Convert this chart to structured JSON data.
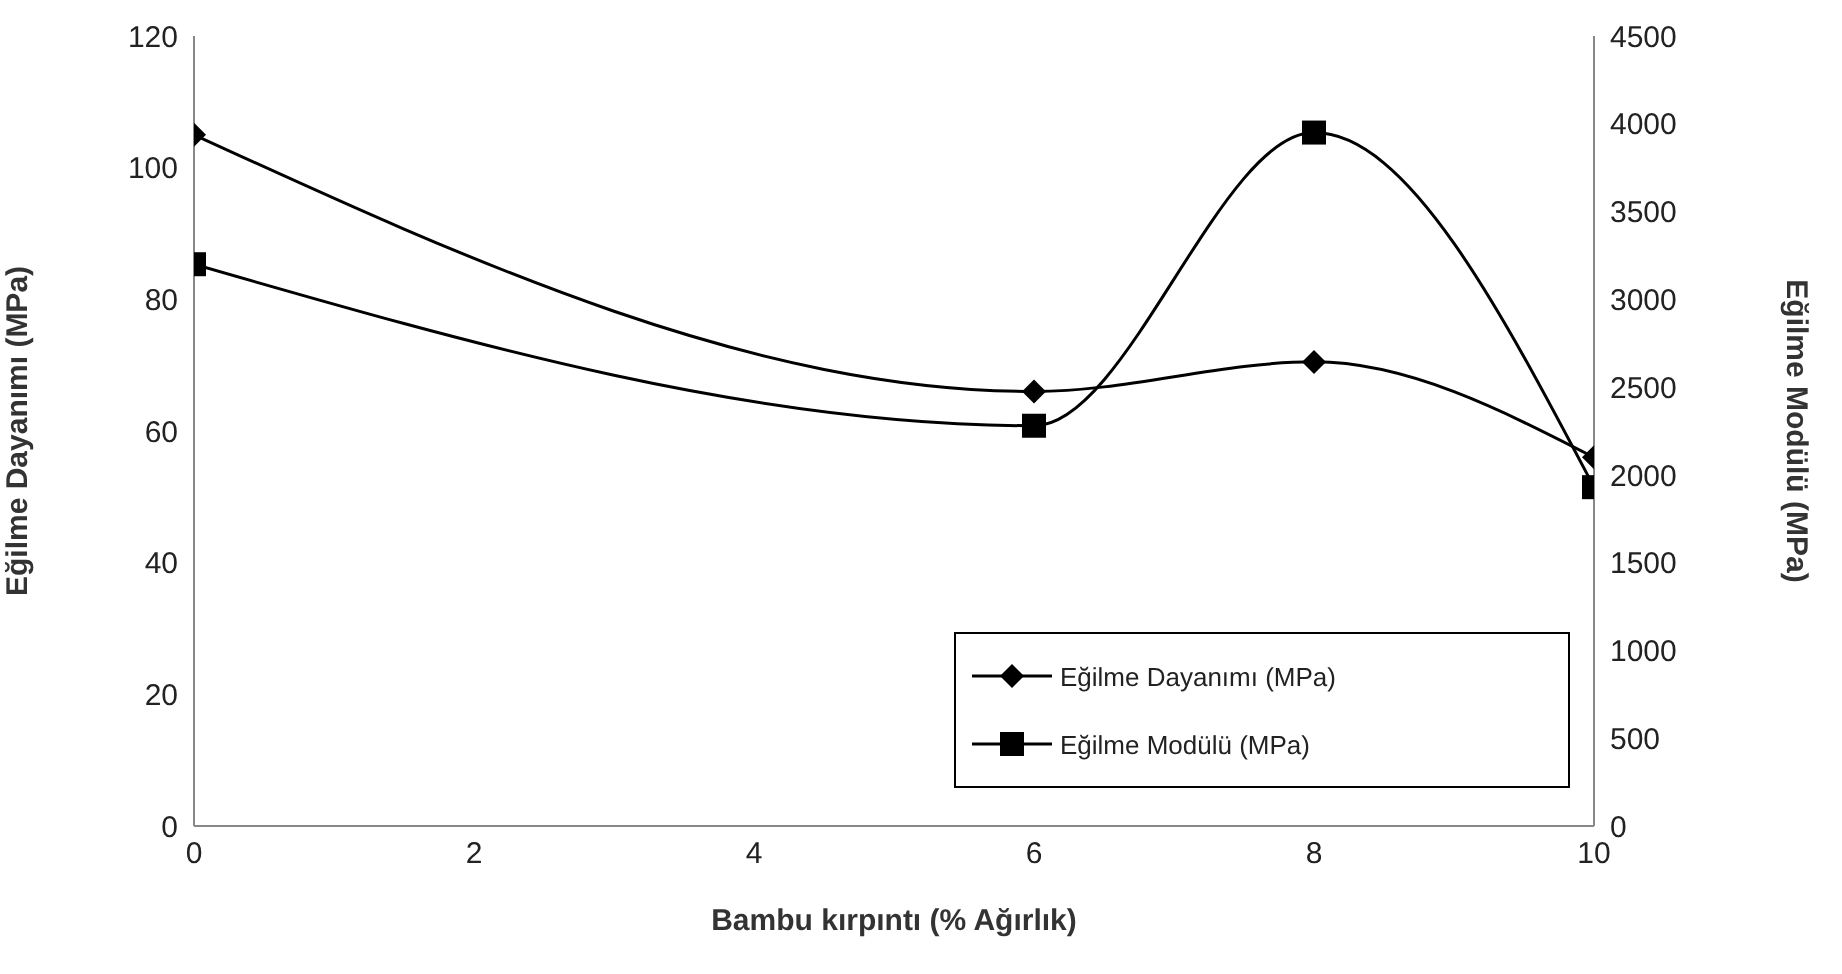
{
  "chart_data": {
    "type": "line",
    "xlabel": "Bambu kırpıntı (% Ağırlık)",
    "ylabel": "Eğilme Dayanımı (MPa)",
    "y2label": "Eğilme Modülü (MPa)",
    "x": [
      0,
      6,
      8,
      10
    ],
    "series": [
      {
        "name": "Eğilme Dayanımı (MPa)",
        "color": "#000000",
        "marker": "diamond",
        "values": [
          105,
          66,
          70.5,
          56
        ]
      },
      {
        "name": "Eğilme Modülü (MPa)",
        "color": "#000000",
        "marker": "square",
        "axis": "y2",
        "values": [
          3200,
          2280,
          3950,
          1930
        ]
      }
    ],
    "xlim": [
      0,
      10
    ],
    "xticks": [
      0,
      2,
      4,
      6,
      8,
      10
    ],
    "ylim": [
      0,
      120
    ],
    "yticks": [
      0,
      20,
      40,
      60,
      80,
      100,
      120
    ],
    "y2lim": [
      0,
      4500
    ],
    "y2ticks": [
      0,
      500,
      1000,
      1500,
      2000,
      2500,
      3000,
      3500,
      4000,
      4500
    ],
    "grid": false,
    "legend": "bottom right",
    "line_style": "solid"
  }
}
